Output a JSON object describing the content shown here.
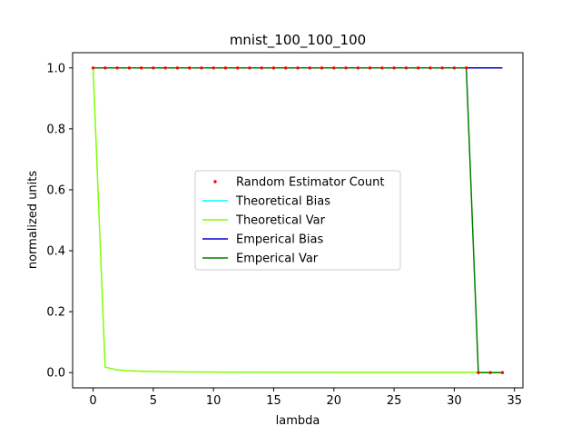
{
  "chart_data": {
    "type": "line",
    "title": "mnist_100_100_100",
    "xlabel": "lambda",
    "ylabel": "normalized units",
    "xlim": [
      -1.7,
      35.7
    ],
    "ylim": [
      -0.05,
      1.05
    ],
    "xticks": [
      0,
      5,
      10,
      15,
      20,
      25,
      30,
      35
    ],
    "yticks": [
      0.0,
      0.2,
      0.4,
      0.6,
      0.8,
      1.0
    ],
    "xtick_labels": [
      "0",
      "5",
      "10",
      "15",
      "20",
      "25",
      "30",
      "35"
    ],
    "ytick_labels": [
      "0.0",
      "0.2",
      "0.4",
      "0.6",
      "0.8",
      "1.0"
    ],
    "legend_position": "center",
    "grid": false,
    "series": [
      {
        "name": "Random Estimator Count",
        "style": "dots",
        "color": "#ff0000",
        "x": [
          0,
          1,
          2,
          3,
          4,
          5,
          6,
          7,
          8,
          9,
          10,
          11,
          12,
          13,
          14,
          15,
          16,
          17,
          18,
          19,
          20,
          21,
          22,
          23,
          24,
          25,
          26,
          27,
          28,
          29,
          30,
          31,
          32,
          33,
          34
        ],
        "y": [
          1,
          1,
          1,
          1,
          1,
          1,
          1,
          1,
          1,
          1,
          1,
          1,
          1,
          1,
          1,
          1,
          1,
          1,
          1,
          1,
          1,
          1,
          1,
          1,
          1,
          1,
          1,
          1,
          1,
          1,
          1,
          1,
          0,
          0,
          0
        ]
      },
      {
        "name": "Theoretical Bias",
        "style": "line",
        "color": "#00ffff",
        "x": [
          0,
          34
        ],
        "y": [
          1,
          1
        ]
      },
      {
        "name": "Theoretical Var",
        "style": "line",
        "color": "#7fff00",
        "x": [
          0,
          1,
          2,
          3,
          4,
          5,
          6,
          7,
          8,
          9,
          10,
          12,
          14,
          16,
          18,
          20,
          22,
          24,
          26,
          28,
          30,
          32,
          34
        ],
        "y": [
          1.0,
          0.018,
          0.009,
          0.006,
          0.0045,
          0.0036,
          0.003,
          0.0026,
          0.0023,
          0.002,
          0.0018,
          0.0015,
          0.0013,
          0.0011,
          0.001,
          0.0009,
          0.0008,
          0.0008,
          0.0007,
          0.0007,
          0.0006,
          0.0006,
          0.0005
        ]
      },
      {
        "name": "Emperical Bias",
        "style": "line",
        "color": "#0000cc",
        "x": [
          0,
          34
        ],
        "y": [
          1,
          1
        ]
      },
      {
        "name": "Emperical Var",
        "style": "line",
        "color": "#008000",
        "x": [
          0,
          1,
          2,
          3,
          4,
          5,
          6,
          7,
          8,
          9,
          10,
          11,
          12,
          13,
          14,
          15,
          16,
          17,
          18,
          19,
          20,
          21,
          22,
          23,
          24,
          25,
          26,
          27,
          28,
          29,
          30,
          31,
          32,
          33,
          34
        ],
        "y": [
          1,
          1,
          1,
          1,
          1,
          1,
          1,
          1,
          1,
          1,
          1,
          1,
          1,
          1,
          1,
          1,
          1,
          1,
          1,
          1,
          1,
          1,
          1,
          1,
          1,
          1,
          1,
          1,
          1,
          1,
          1,
          1,
          0,
          0,
          0
        ]
      }
    ]
  }
}
